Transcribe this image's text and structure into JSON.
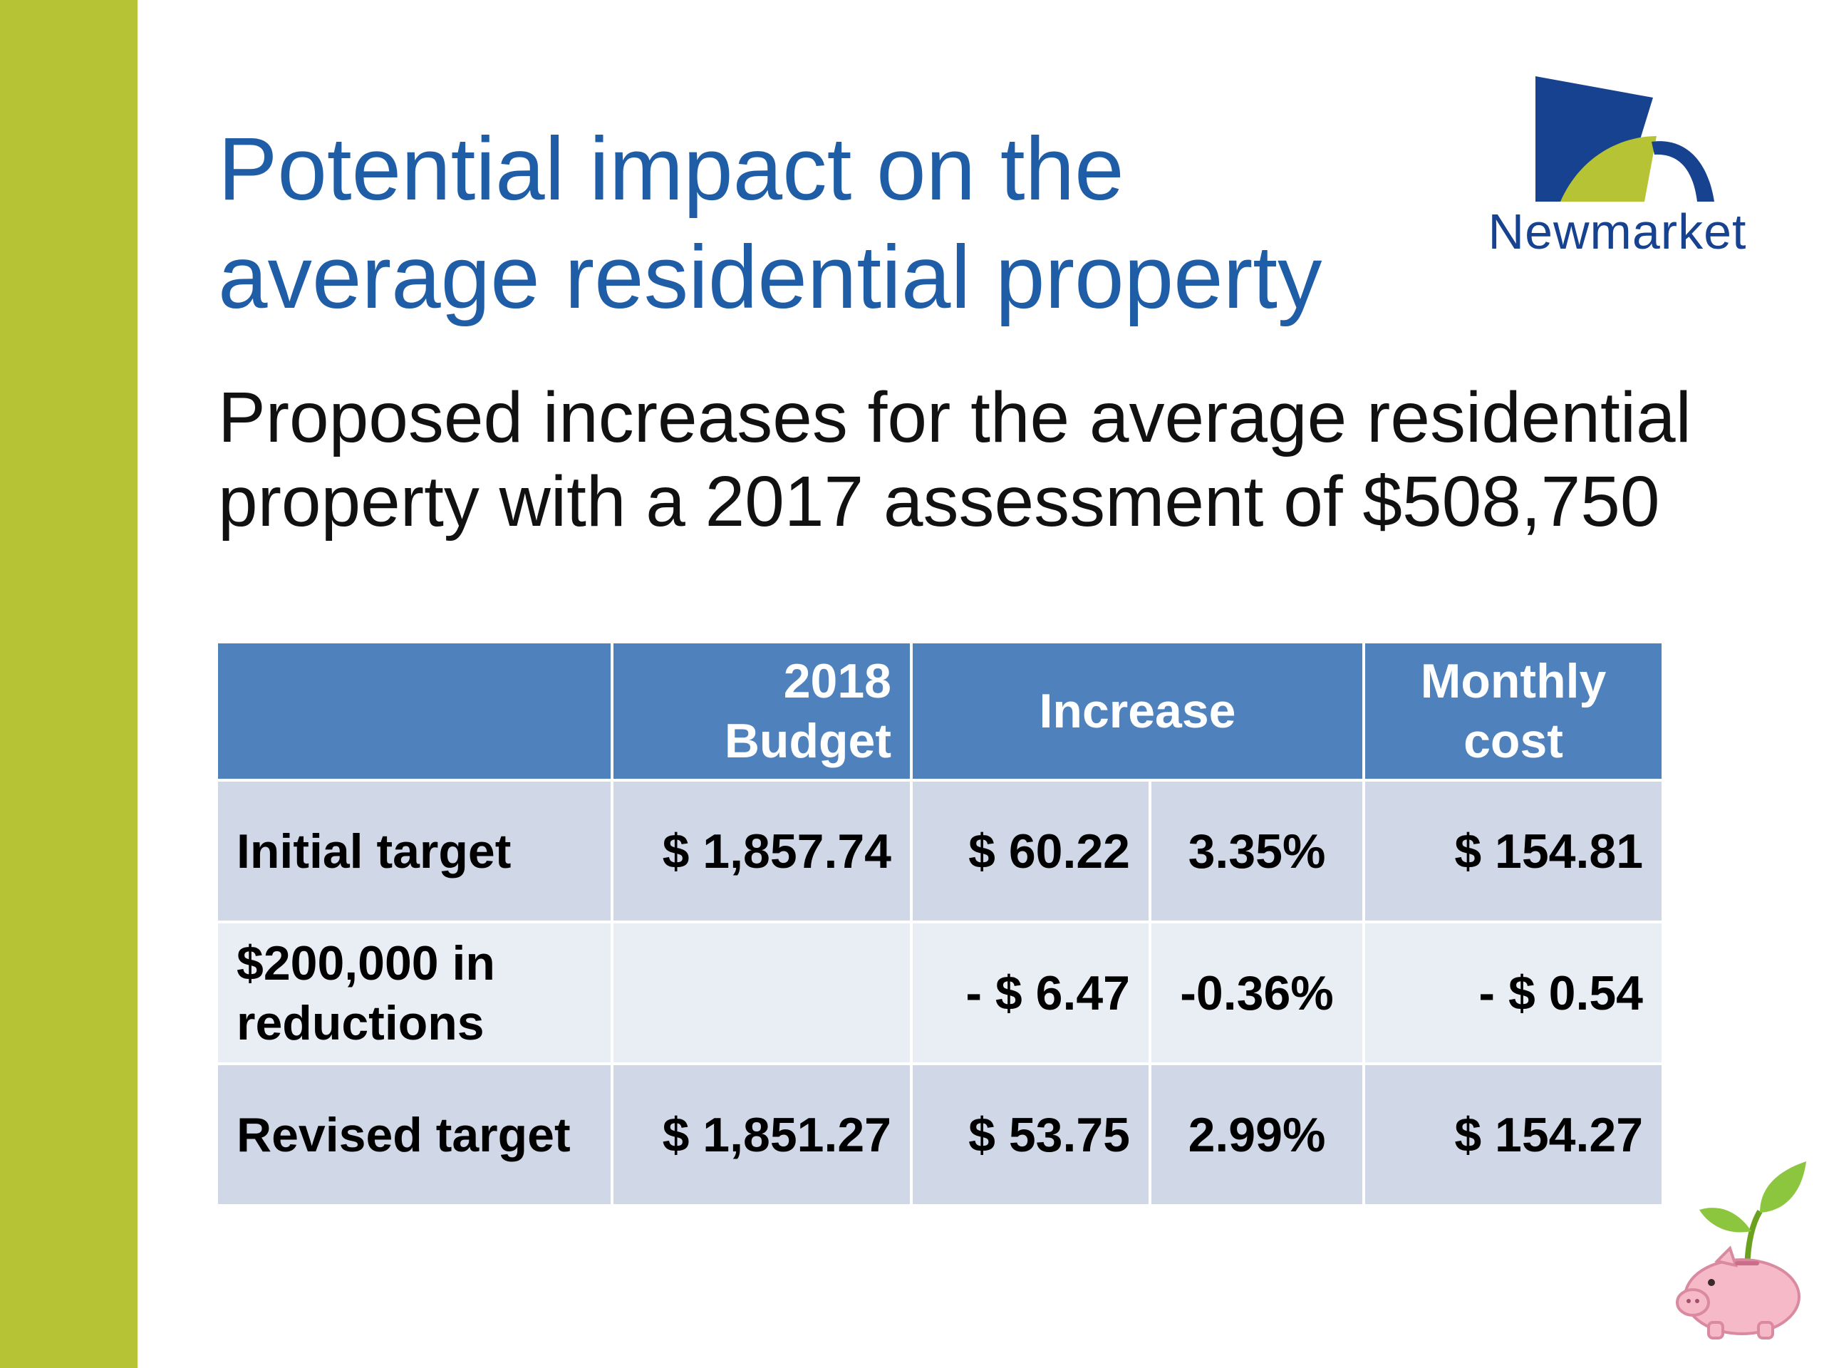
{
  "colors": {
    "accent_green": "#b5c334",
    "title_blue": "#1f5ea6",
    "table_header": "#4f81bd",
    "row_dark": "#d0d8e8",
    "row_light": "#e9edf4",
    "logo_navy": "#17428f"
  },
  "slide": {
    "title_line1": "Potential impact on the",
    "title_line2": "average residential property",
    "subtitle_line1": "Proposed increases for the average residential",
    "subtitle_line2": "property with a 2017 assessment of $508,750"
  },
  "logo": {
    "text": "Newmarket"
  },
  "table": {
    "headers": {
      "col1": "",
      "budget_line1": "2018",
      "budget_line2": "Budget",
      "increase": "Increase",
      "monthly_line1": "Monthly",
      "monthly_line2": "cost"
    },
    "rows": [
      {
        "label_line1": "Initial target",
        "label_line2": "",
        "budget": "$ 1,857.74",
        "increase_amount": "$ 60.22",
        "increase_pct": "3.35%",
        "monthly": "$ 154.81"
      },
      {
        "label_line1": "$200,000 in",
        "label_line2": "reductions",
        "budget": "",
        "increase_amount": "- $ 6.47",
        "increase_pct": "-0.36%",
        "monthly": "- $ 0.54"
      },
      {
        "label_line1": "Revised target",
        "label_line2": "",
        "budget": "$ 1,851.27",
        "increase_amount": "$ 53.75",
        "increase_pct": "2.99%",
        "monthly": "$ 154.27"
      }
    ]
  },
  "decorations": {
    "corner_icon": "piggy-bank-sprout-icon"
  }
}
